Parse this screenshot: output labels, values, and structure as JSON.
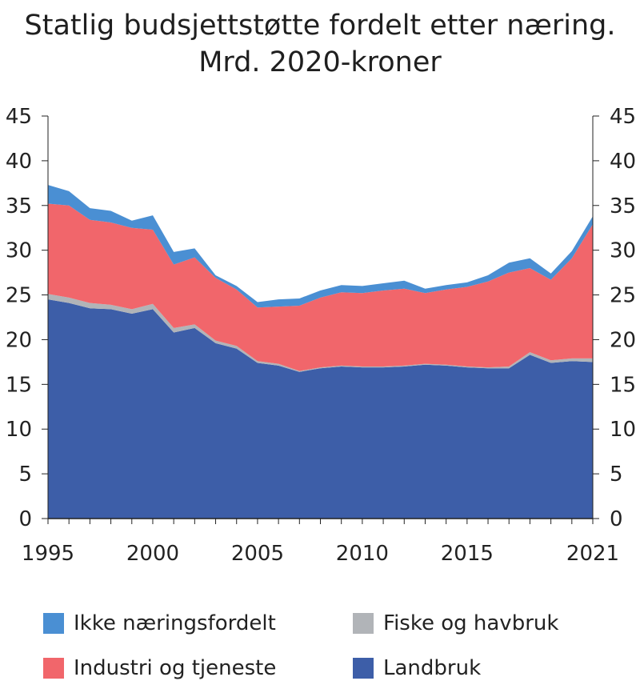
{
  "chart_data": {
    "type": "area",
    "title": "Statlig budsjettstøtte fordelt etter næring.",
    "subtitle": "Mrd. 2020-kroner",
    "xlabel": "",
    "ylabel": "",
    "x": [
      1995,
      1996,
      1997,
      1998,
      1999,
      2000,
      2001,
      2002,
      2003,
      2004,
      2005,
      2006,
      2007,
      2008,
      2009,
      2010,
      2011,
      2012,
      2013,
      2014,
      2015,
      2016,
      2017,
      2018,
      2019,
      2020,
      2021
    ],
    "xlim": [
      1995,
      2021
    ],
    "ylim": [
      0,
      45
    ],
    "x_ticks": [
      "1995",
      "2000",
      "2005",
      "2010",
      "2015",
      "2021"
    ],
    "y_ticks": [
      "0",
      "5",
      "10",
      "15",
      "20",
      "25",
      "30",
      "35",
      "40",
      "45"
    ],
    "stacked": true,
    "grid": false,
    "legend": "bottom",
    "series": [
      {
        "name": "Landbruk",
        "color": "#3d5ea8",
        "values": [
          24.5,
          24.1,
          23.5,
          23.4,
          22.9,
          23.4,
          20.8,
          21.3,
          19.6,
          19.0,
          17.4,
          17.1,
          16.4,
          16.8,
          17.0,
          16.9,
          16.9,
          17.0,
          17.2,
          17.1,
          16.9,
          16.8,
          16.8,
          18.3,
          17.4,
          17.6,
          17.5
        ]
      },
      {
        "name": "Fiske og havbruk",
        "color": "#b1b4b8",
        "values": [
          0.6,
          0.6,
          0.6,
          0.5,
          0.5,
          0.6,
          0.5,
          0.4,
          0.3,
          0.3,
          0.2,
          0.2,
          0.1,
          0.1,
          0.1,
          0.1,
          0.1,
          0.1,
          0.1,
          0.1,
          0.1,
          0.1,
          0.2,
          0.3,
          0.3,
          0.3,
          0.4
        ]
      },
      {
        "name": "Industri og tjeneste",
        "color": "#f1666b",
        "values": [
          10.1,
          10.3,
          9.3,
          9.2,
          9.1,
          8.3,
          7.1,
          7.5,
          7.0,
          6.3,
          6.0,
          6.4,
          7.3,
          7.8,
          8.2,
          8.2,
          8.5,
          8.6,
          7.9,
          8.4,
          8.9,
          9.6,
          10.5,
          9.4,
          9.0,
          11.2,
          15.0
        ]
      },
      {
        "name": "Ikke næringsfordelt",
        "color": "#4a8fd3",
        "values": [
          2.1,
          1.6,
          1.3,
          1.3,
          0.8,
          1.6,
          1.4,
          1.0,
          0.3,
          0.4,
          0.6,
          0.8,
          0.8,
          0.8,
          0.8,
          0.8,
          0.8,
          0.9,
          0.5,
          0.5,
          0.5,
          0.7,
          1.1,
          1.1,
          0.7,
          0.8,
          0.9
        ]
      }
    ]
  }
}
